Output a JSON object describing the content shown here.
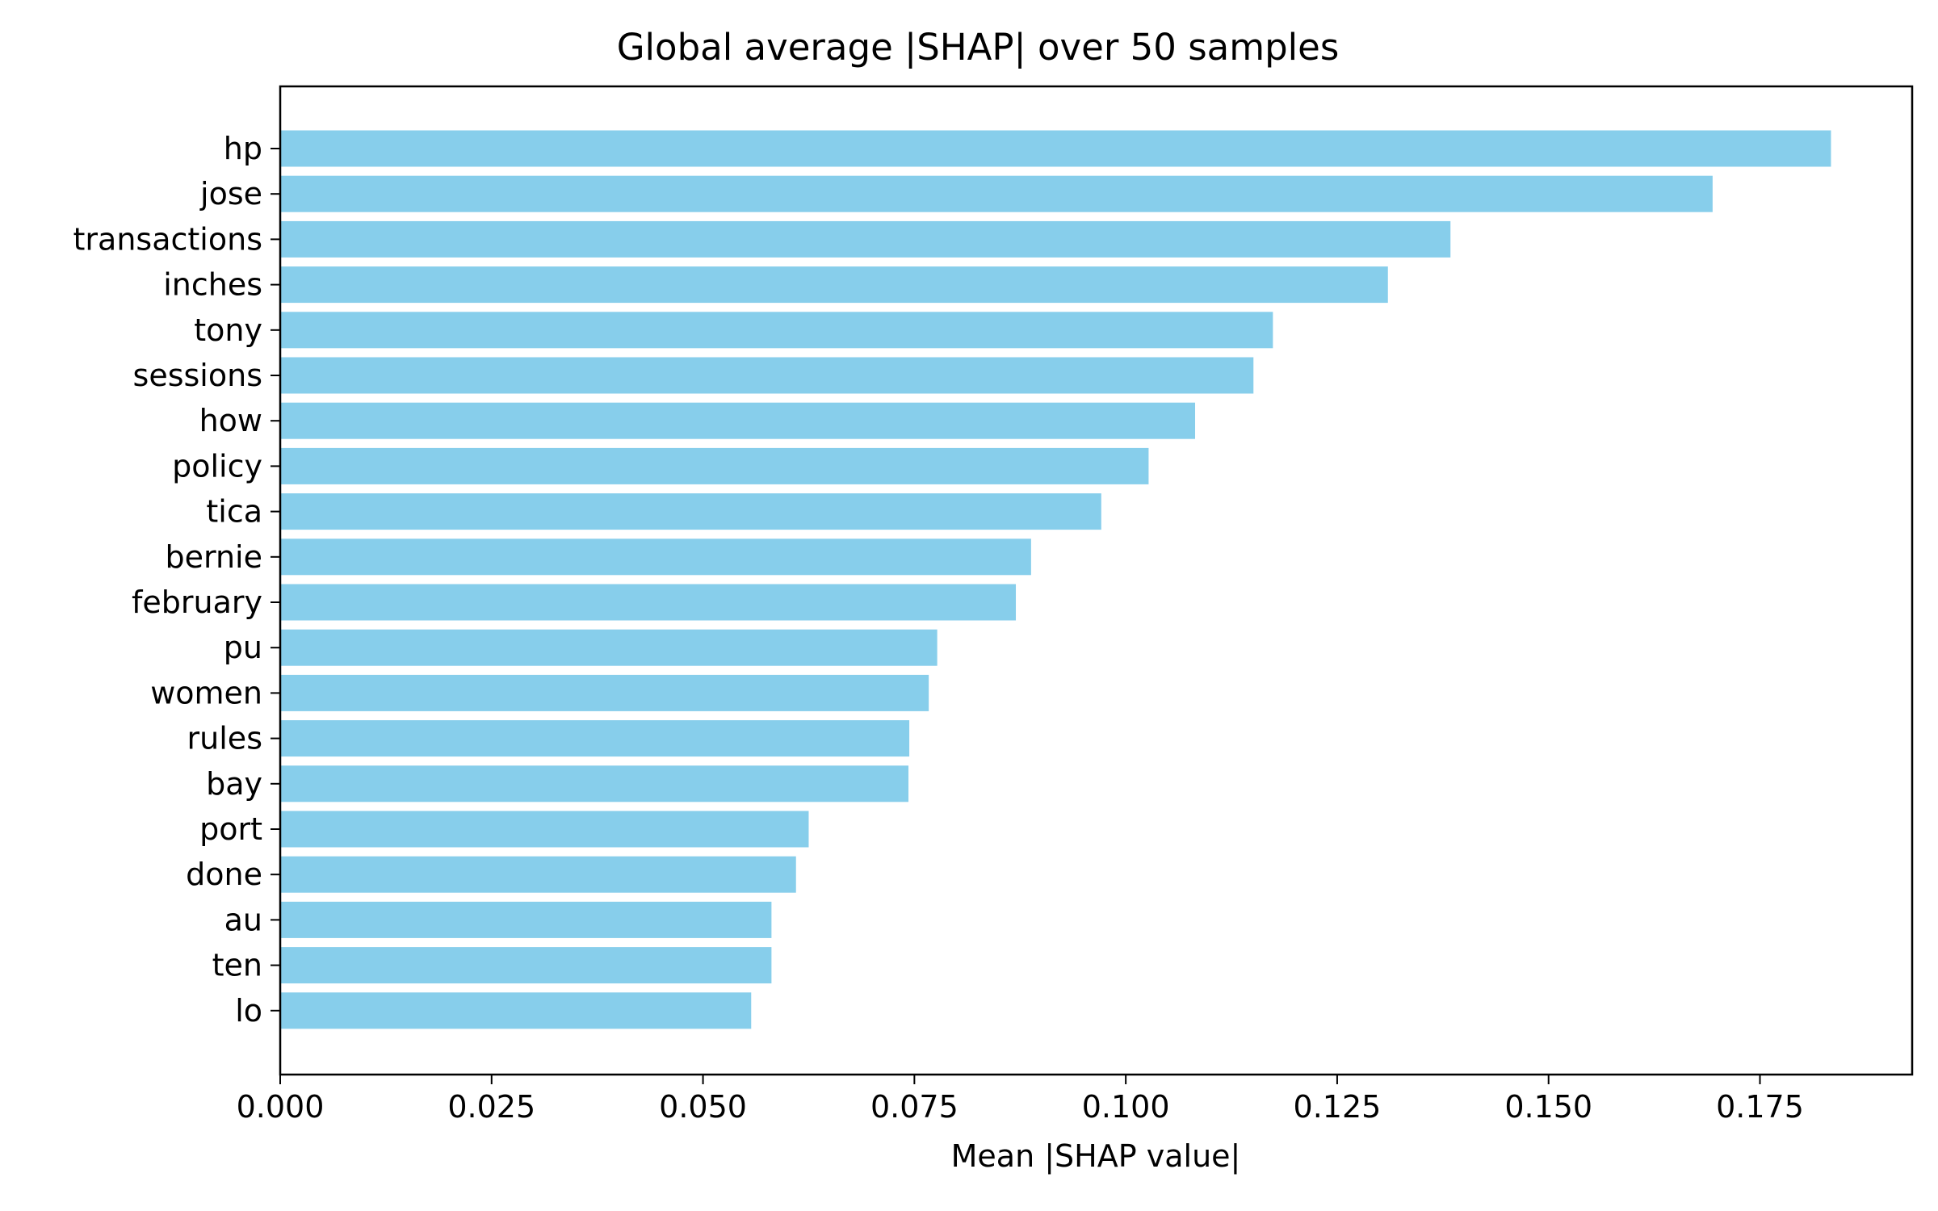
{
  "chart_data": {
    "type": "bar",
    "orientation": "horizontal",
    "title": "Global average |SHAP| over 50 samples",
    "xlabel": "Mean |SHAP value|",
    "ylabel": "",
    "xlim": [
      0.0,
      0.193
    ],
    "xticks": [
      0.0,
      0.025,
      0.05,
      0.075,
      0.1,
      0.125,
      0.15,
      0.175
    ],
    "xtick_labels": [
      "0.000",
      "0.025",
      "0.050",
      "0.075",
      "0.100",
      "0.125",
      "0.150",
      "0.175"
    ],
    "grid": false,
    "bar_color": "#87ceeb",
    "categories": [
      "hp",
      "jose",
      "transactions",
      "inches",
      "tony",
      "sessions",
      "how",
      "policy",
      "tica",
      "bernie",
      "february",
      "pu",
      "women",
      "rules",
      "bay",
      "port",
      "done",
      "au",
      "ten",
      "lo"
    ],
    "values": [
      0.1834,
      0.1694,
      0.1384,
      0.131,
      0.1174,
      0.1151,
      0.1082,
      0.1027,
      0.0971,
      0.0888,
      0.087,
      0.0777,
      0.0767,
      0.0744,
      0.0743,
      0.0625,
      0.061,
      0.0581,
      0.0581,
      0.0557
    ]
  }
}
